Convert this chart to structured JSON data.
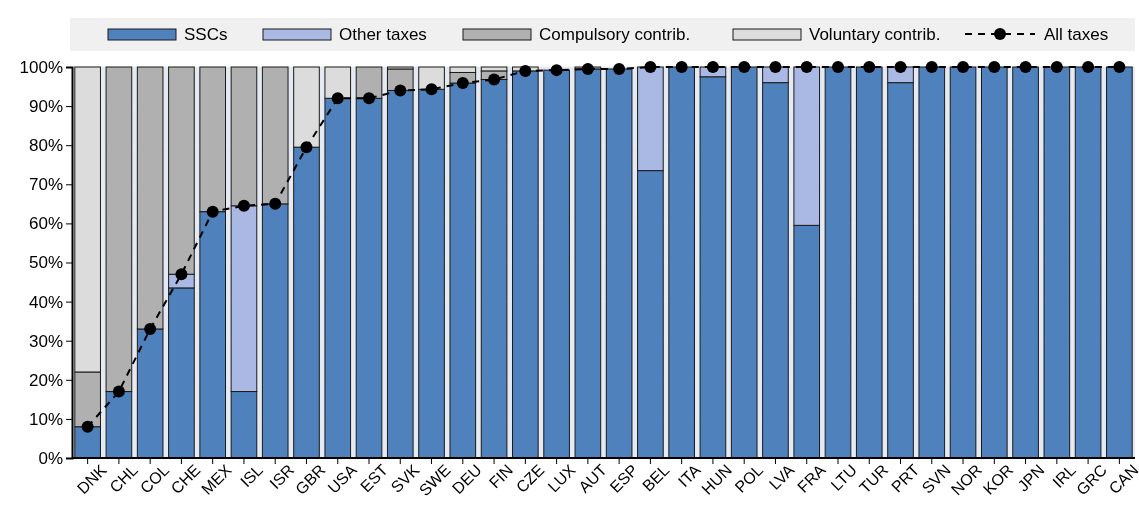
{
  "chart_data": {
    "type": "bar",
    "stacked": true,
    "grid": "y",
    "legend": "top",
    "categories": [
      "DNK",
      "CHL",
      "COL",
      "CHE",
      "MEX",
      "ISL",
      "ISR",
      "GBR",
      "USA",
      "EST",
      "SVK",
      "SWE",
      "DEU",
      "FIN",
      "CZE",
      "LUX",
      "AUT",
      "ESP",
      "BEL",
      "ITA",
      "HUN",
      "POL",
      "LVA",
      "FRA",
      "LTU",
      "TUR",
      "PRT",
      "SVN",
      "NOR",
      "KOR",
      "JPN",
      "IRL",
      "GRC",
      "CAN"
    ],
    "series": [
      {
        "name": "SSCs",
        "color": "#4f81bd",
        "values": [
          8,
          17,
          33,
          43.5,
          63,
          17,
          65,
          79.5,
          92,
          92,
          94,
          94.3,
          95.9,
          96.8,
          99,
          99.2,
          99.5,
          99.5,
          73.5,
          100,
          97.5,
          100,
          96,
          59.5,
          100,
          100,
          96,
          100,
          100,
          100,
          100,
          100,
          100,
          100
        ]
      },
      {
        "name": "Other taxes",
        "color": "#a9b9e4",
        "values": [
          0,
          0,
          0,
          3.5,
          0,
          47.5,
          0,
          0,
          0,
          0,
          0,
          0,
          0,
          0,
          0,
          0,
          0,
          0,
          26.5,
          0,
          2.5,
          0,
          4,
          40.5,
          0,
          0,
          4,
          0,
          0,
          0,
          0,
          0,
          0,
          0
        ]
      },
      {
        "name": "Compulsory contrib.",
        "color": "#b0b0b0",
        "values": [
          14,
          83,
          67,
          53,
          37,
          35.5,
          35,
          0,
          0,
          8,
          5.5,
          0,
          2.7,
          2.2,
          0,
          null,
          0.5,
          null,
          0,
          0,
          0,
          0,
          0,
          0,
          0,
          0,
          0,
          0,
          0,
          0,
          0,
          0,
          0,
          0
        ]
      },
      {
        "name": "Voluntary contrib.",
        "color": "#dcdcdc",
        "values": [
          78,
          0,
          0,
          0,
          0,
          0,
          0,
          20.5,
          8,
          0,
          0.5,
          5.7,
          1.4,
          1,
          1,
          0,
          0,
          0,
          0,
          0,
          0,
          0,
          0,
          0,
          0,
          0,
          0,
          0,
          0,
          0,
          0,
          0,
          0,
          0
        ]
      },
      {
        "name": "All taxes",
        "type": "line",
        "color": "#000000",
        "marker": "circle",
        "line_style": "dashed",
        "values": [
          8,
          17,
          33,
          47,
          63,
          64.5,
          65,
          79.5,
          92,
          92,
          94,
          94.3,
          95.9,
          96.8,
          99,
          99.2,
          99.5,
          99.5,
          100,
          100,
          100,
          100,
          100,
          100,
          100,
          100,
          100,
          100,
          100,
          100,
          100,
          100,
          100,
          100
        ]
      }
    ],
    "ylim": [
      0,
      100
    ],
    "yticks": [
      {
        "value": 0,
        "label": "0%"
      },
      {
        "value": 10,
        "label": "10%"
      },
      {
        "value": 20,
        "label": "20%"
      },
      {
        "value": 30,
        "label": "30%"
      },
      {
        "value": 40,
        "label": "40%"
      },
      {
        "value": 50,
        "label": "50%"
      },
      {
        "value": 60,
        "label": "60%"
      },
      {
        "value": 70,
        "label": "70%"
      },
      {
        "value": 80,
        "label": "80%"
      },
      {
        "value": 90,
        "label": "90%"
      },
      {
        "value": 100,
        "label": "100%"
      }
    ]
  }
}
